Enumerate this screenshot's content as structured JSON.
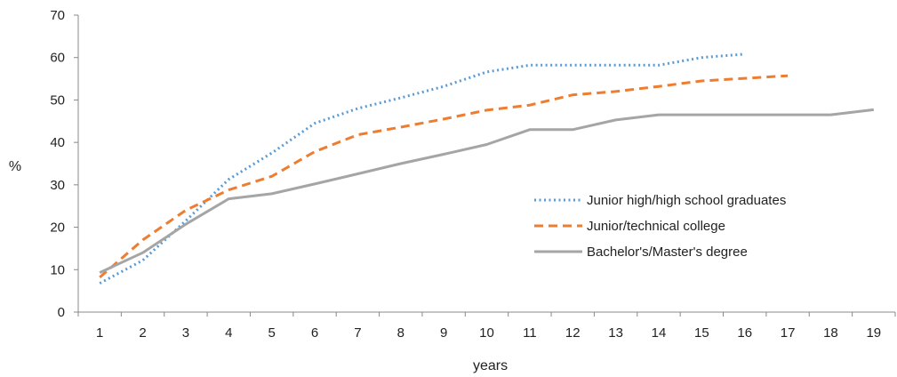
{
  "chart_data": {
    "type": "line",
    "title": "",
    "xlabel": "years",
    "ylabel": "%",
    "categories": [
      "1",
      "2",
      "3",
      "4",
      "5",
      "6",
      "7",
      "8",
      "9",
      "10",
      "11",
      "12",
      "13",
      "14",
      "15",
      "16",
      "17",
      "18",
      "19"
    ],
    "ylim": [
      0,
      70
    ],
    "yticks": [
      "0",
      "10",
      "20",
      "30",
      "40",
      "50",
      "60",
      "70"
    ],
    "grid": false,
    "legend_position": "right",
    "series": [
      {
        "name": "Junior high/high school graduates",
        "color": "#5b9bd5",
        "style": "dotted",
        "values": [
          6.8,
          12.2,
          21.5,
          31.3,
          37.5,
          44.5,
          48.0,
          50.5,
          53.2,
          56.6,
          58.2,
          58.2,
          58.2,
          58.2,
          60.0,
          60.8,
          null,
          null,
          null
        ]
      },
      {
        "name": "Junior/technical college",
        "color": "#ed7d31",
        "style": "dashed",
        "values": [
          8.2,
          17.0,
          24.0,
          28.8,
          32.0,
          37.8,
          41.8,
          43.6,
          45.5,
          47.6,
          48.8,
          51.2,
          52.0,
          53.2,
          54.5,
          55.1,
          55.7,
          null,
          null
        ]
      },
      {
        "name": "Bachelor's/Master's degree",
        "color": "#a5a5a5",
        "style": "solid",
        "values": [
          9.3,
          14.0,
          20.7,
          26.7,
          27.9,
          30.2,
          32.6,
          35.0,
          37.2,
          39.5,
          43.0,
          43.0,
          45.3,
          46.5,
          46.5,
          46.5,
          46.5,
          46.5,
          47.7
        ]
      }
    ]
  }
}
